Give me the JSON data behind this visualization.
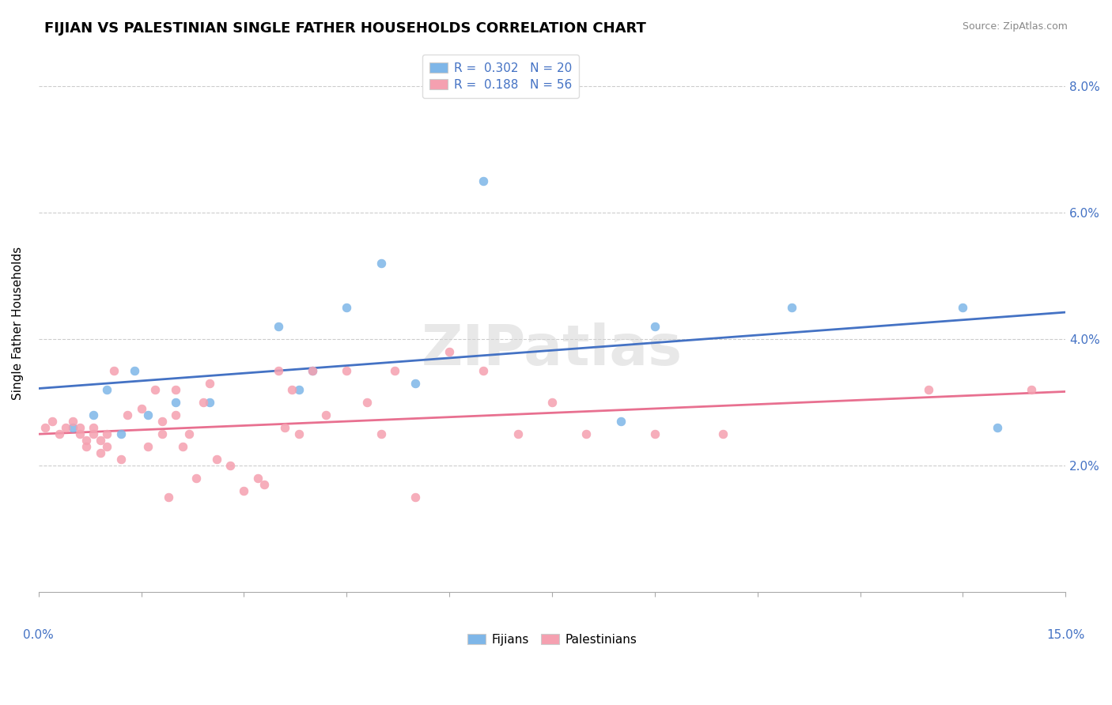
{
  "title": "FIJIAN VS PALESTINIAN SINGLE FATHER HOUSEHOLDS CORRELATION CHART",
  "source": "Source: ZipAtlas.com",
  "ylabel": "Single Father Households",
  "xmin": 0.0,
  "xmax": 15.0,
  "ymin": 0.0,
  "ymax": 8.5,
  "ytick_vals": [
    2.0,
    4.0,
    6.0,
    8.0
  ],
  "ytick_labels": [
    "2.0%",
    "4.0%",
    "6.0%",
    "8.0%"
  ],
  "fijian_color": "#7EB6E8",
  "palestinian_color": "#F5A0B0",
  "fijian_line_color": "#4472C4",
  "palestinian_line_color": "#E87090",
  "fijian_R": 0.302,
  "fijian_N": 20,
  "palestinian_R": 0.188,
  "palestinian_N": 56,
  "watermark": "ZIPatlas",
  "fijian_scatter": [
    [
      0.5,
      2.6
    ],
    [
      0.8,
      2.8
    ],
    [
      1.0,
      3.2
    ],
    [
      1.2,
      2.5
    ],
    [
      1.4,
      3.5
    ],
    [
      1.6,
      2.8
    ],
    [
      2.0,
      3.0
    ],
    [
      2.5,
      3.0
    ],
    [
      3.5,
      4.2
    ],
    [
      3.8,
      3.2
    ],
    [
      4.0,
      3.5
    ],
    [
      4.5,
      4.5
    ],
    [
      5.0,
      5.2
    ],
    [
      5.5,
      3.3
    ],
    [
      6.5,
      6.5
    ],
    [
      8.5,
      2.7
    ],
    [
      9.0,
      4.2
    ],
    [
      11.0,
      4.5
    ],
    [
      13.5,
      4.5
    ],
    [
      14.0,
      2.6
    ]
  ],
  "palestinian_scatter": [
    [
      0.1,
      2.6
    ],
    [
      0.2,
      2.7
    ],
    [
      0.3,
      2.5
    ],
    [
      0.4,
      2.6
    ],
    [
      0.5,
      2.7
    ],
    [
      0.6,
      2.6
    ],
    [
      0.6,
      2.5
    ],
    [
      0.7,
      2.4
    ],
    [
      0.7,
      2.3
    ],
    [
      0.8,
      2.5
    ],
    [
      0.8,
      2.6
    ],
    [
      0.9,
      2.4
    ],
    [
      0.9,
      2.2
    ],
    [
      1.0,
      2.3
    ],
    [
      1.0,
      2.5
    ],
    [
      1.1,
      3.5
    ],
    [
      1.2,
      2.1
    ],
    [
      1.3,
      2.8
    ],
    [
      1.5,
      2.9
    ],
    [
      1.6,
      2.3
    ],
    [
      1.7,
      3.2
    ],
    [
      1.8,
      2.5
    ],
    [
      1.8,
      2.7
    ],
    [
      1.9,
      1.5
    ],
    [
      2.0,
      3.2
    ],
    [
      2.0,
      2.8
    ],
    [
      2.1,
      2.3
    ],
    [
      2.2,
      2.5
    ],
    [
      2.3,
      1.8
    ],
    [
      2.4,
      3.0
    ],
    [
      2.5,
      3.3
    ],
    [
      2.6,
      2.1
    ],
    [
      2.8,
      2.0
    ],
    [
      3.0,
      1.6
    ],
    [
      3.2,
      1.8
    ],
    [
      3.3,
      1.7
    ],
    [
      3.5,
      3.5
    ],
    [
      3.6,
      2.6
    ],
    [
      3.7,
      3.2
    ],
    [
      3.8,
      2.5
    ],
    [
      4.0,
      3.5
    ],
    [
      4.2,
      2.8
    ],
    [
      4.5,
      3.5
    ],
    [
      4.8,
      3.0
    ],
    [
      5.0,
      2.5
    ],
    [
      5.2,
      3.5
    ],
    [
      5.5,
      1.5
    ],
    [
      6.0,
      3.8
    ],
    [
      6.5,
      3.5
    ],
    [
      7.0,
      2.5
    ],
    [
      7.5,
      3.0
    ],
    [
      8.0,
      2.5
    ],
    [
      9.0,
      2.5
    ],
    [
      10.0,
      2.5
    ],
    [
      13.0,
      3.2
    ],
    [
      14.5,
      3.2
    ]
  ]
}
